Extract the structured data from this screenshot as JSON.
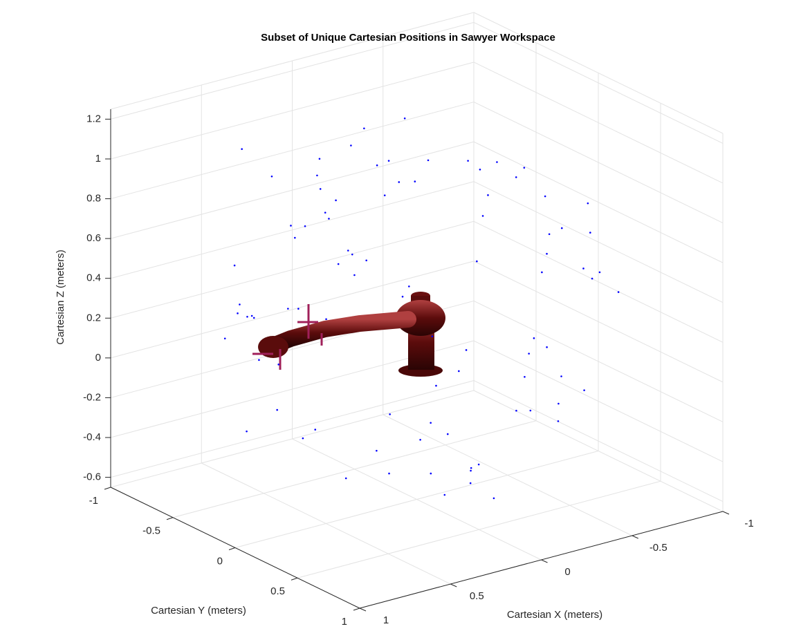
{
  "chart_data": {
    "type": "scatter3d",
    "title": "Subset of Unique Cartesian Positions in Sawyer Workspace",
    "xlabel": "Cartesian X (meters)",
    "ylabel": "Cartesian Y (meters)",
    "zlabel": "Cartesian Z (meters)",
    "xlim": [
      -1,
      1
    ],
    "ylim": [
      -1,
      1
    ],
    "zlim": [
      -0.65,
      1.25
    ],
    "xticks": [
      -1,
      -0.5,
      0,
      0.5,
      1
    ],
    "yticks": [
      -1,
      -0.5,
      0,
      0.5,
      1
    ],
    "zticks": [
      -0.6,
      -0.4,
      -0.2,
      0,
      0.2,
      0.4,
      0.6,
      0.8,
      1,
      1.2
    ],
    "grid": true,
    "color": "#0000ff",
    "x": [
      0.12,
      -0.45,
      0.67,
      -0.23,
      0.34,
      -0.71,
      0.05,
      0.48,
      -0.12,
      -0.58,
      0.81,
      -0.33,
      0.22,
      -0.05,
      0.59,
      -0.84,
      0.41,
      -0.27,
      0.09,
      0.73,
      -0.62,
      0.28,
      -0.41,
      0.55,
      -0.17,
      0.02,
      -0.76,
      0.63,
      -0.38,
      0.17,
      0.44,
      -0.09,
      -0.52,
      0.31,
      0.86,
      -0.68,
      0.14,
      -0.29,
      0.52,
      -0.46,
      0.07,
      0.69,
      -0.15,
      -0.88,
      0.38,
      0.25,
      -0.57,
      0.61,
      -0.21,
      0.49,
      -0.03,
      -0.66,
      0.78,
      0.19,
      -0.36,
      0.57,
      -0.72,
      0.11,
      0.33,
      -0.49,
      0.91,
      -0.14,
      -0.81,
      0.46,
      0.04,
      -0.25,
      0.64,
      -0.53,
      0.27,
      -0.06,
      0.71,
      -0.39,
      0.15,
      -0.61,
      0.36,
      0.83,
      -0.19,
      0.58,
      -0.44,
      0.01,
      -0.74,
      0.43,
      0.21,
      -0.31,
      0.66,
      -0.11,
      0.53,
      -0.87,
      0.29,
      -0.02
    ],
    "y": [
      -0.56,
      0.21,
      0.08,
      -0.74,
      0.62,
      0.13,
      -0.35,
      -0.41,
      0.87,
      0.29,
      -0.18,
      0.55,
      -0.63,
      0.04,
      0.36,
      -0.22,
      0.71,
      -0.49,
      -0.88,
      0.15,
      0.47,
      -0.12,
      -0.66,
      0.58,
      0.25,
      0.93,
      -0.31,
      -0.52,
      0.09,
      -0.27,
      0.67,
      -0.45,
      0.38,
      0.79,
      -0.07,
      -0.58,
      -0.83,
      0.44,
      0.19,
      -0.14,
      0.61,
      -0.36,
      -0.77,
      0.11,
      -0.61,
      0.52,
      0.33,
      0.26,
      -0.42,
      -0.69,
      0.18,
      -0.48,
      0.41,
      0.02,
      0.82,
      -0.29,
      0.57,
      -0.64,
      0.73,
      0.35,
      0.06,
      -0.91,
      -0.24,
      -0.11,
      0.49,
      0.68,
      -0.53,
      0.14,
      -0.38,
      0.31,
      0.22,
      0.84,
      -0.76,
      -0.09,
      0.51,
      -0.33,
      0.16,
      0.63,
      -0.55,
      -0.21,
      0.39,
      -0.68,
      0.74,
      0.12,
      -0.46,
      -0.81,
      0.45,
      0.07,
      0.28,
      0.59
    ],
    "z": [
      0.65,
      -0.08,
      0.91,
      0.27,
      0.44,
      0.58,
      1.12,
      0.02,
      0.35,
      -0.31,
      0.41,
      0.96,
      0.17,
      -0.52,
      0.73,
      0.22,
      0.05,
      1.05,
      0.48,
      -0.12,
      0.83,
      1.16,
      0.12,
      -0.21,
      -0.44,
      0.37,
      0.69,
      0.28,
      0.98,
      0.54,
      -0.04,
      0.87,
      -0.18,
      0.31,
      0.46,
      0.71,
      0.09,
      1.08,
      -0.36,
      0.62,
      1.21,
      -0.25,
      0.33,
      0.51,
      0.88,
      0.14,
      -0.07,
      0.76,
      0.19,
      1.02,
      -0.58,
      0.24,
      0.57,
      0.93,
      0.06,
      -0.15,
      0.39,
      0.81,
      -0.02,
      0.67,
      0.29,
      0.45,
      -0.11,
      1.14,
      -0.41,
      0.73,
      0.52,
      -0.29,
      0.86,
      0.18,
      -0.06,
      0.62,
      0.47,
      -0.38,
      1.19,
      0.26,
      -0.49,
      0.11,
      0.78,
      0.99,
      0.43,
      0.16,
      -0.23,
      0.84,
      0.35,
      0.58,
      -0.14,
      0.32,
      1.1,
      -0.47
    ]
  }
}
